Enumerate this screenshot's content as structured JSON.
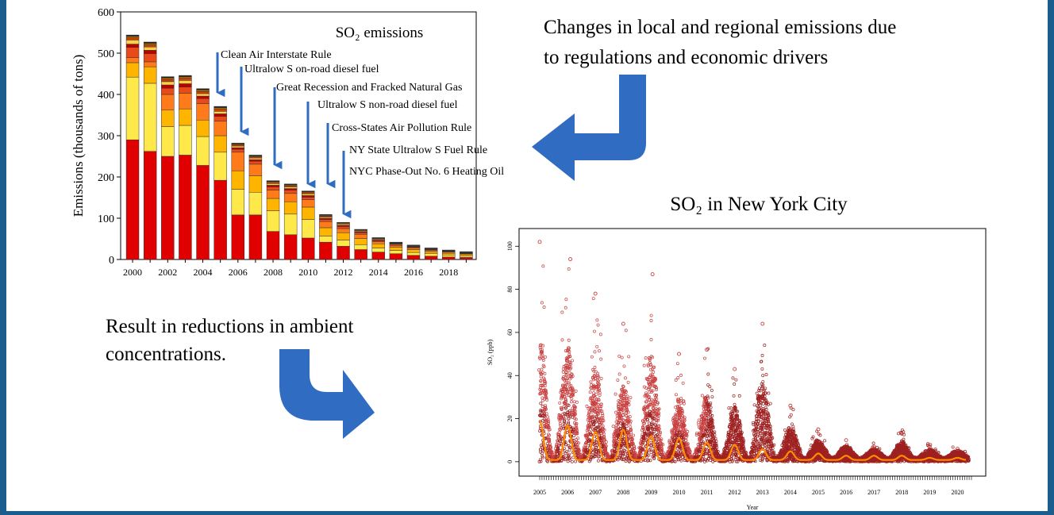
{
  "colors": {
    "frame": "#1b5e8e",
    "arrow": "#2f6cc2",
    "series_palette": [
      "#e00000",
      "#ffe84a",
      "#ffb400",
      "#ff7a1a",
      "#e84a1a",
      "#c00000",
      "#ffd040",
      "#d04000",
      "#b86400",
      "#202020"
    ],
    "nyc_points": "#c94040",
    "nyc_dense": "#9e2020",
    "nyc_mean": "#ff8c00"
  },
  "captions": {
    "top_right": [
      "Changes in local and regional emissions due",
      "to regulations and economic drivers"
    ],
    "bottom_left": [
      "Result in reductions in ambient",
      "concentrations."
    ]
  },
  "icons": [
    "curved-arrow-icon",
    "regulation-arrow-icon"
  ],
  "chart_data": [
    {
      "type": "bar",
      "stacked": true,
      "title": "SO₂ emissions",
      "ylabel": "Emissions (thousands of tons)",
      "xlabel": "",
      "ylim": [
        0,
        600
      ],
      "yticks": [
        0,
        100,
        200,
        300,
        400,
        500,
        600
      ],
      "xtick_labels": [
        "2000",
        "2002",
        "2004",
        "2006",
        "2008",
        "2010",
        "2012",
        "2014",
        "2016",
        "2018"
      ],
      "categories": [
        "2000",
        "2001",
        "2002",
        "2003",
        "2004",
        "2005",
        "2006",
        "2007",
        "2008",
        "2009",
        "2010",
        "2011",
        "2012",
        "2013",
        "2014",
        "2015",
        "2016",
        "2017",
        "2018",
        "2019"
      ],
      "series": [
        {
          "values": [
            290,
            262,
            250,
            253,
            228,
            192,
            108,
            108,
            68,
            60,
            52,
            42,
            32,
            24,
            18,
            14,
            10,
            8,
            6,
            5
          ]
        },
        {
          "values": [
            152,
            165,
            72,
            72,
            70,
            68,
            62,
            55,
            50,
            50,
            45,
            15,
            15,
            12,
            10,
            8,
            7,
            6,
            5,
            4
          ]
        },
        {
          "values": [
            35,
            40,
            40,
            40,
            40,
            40,
            45,
            40,
            30,
            30,
            30,
            20,
            18,
            15,
            10,
            8,
            7,
            5,
            4,
            3
          ]
        },
        {
          "values": [
            12,
            12,
            38,
            38,
            40,
            35,
            45,
            28,
            20,
            20,
            18,
            15,
            10,
            10,
            5,
            4,
            4,
            3,
            3,
            2
          ]
        },
        {
          "values": [
            25,
            20,
            15,
            15,
            12,
            12,
            7,
            7,
            8,
            8,
            6,
            5,
            5,
            4,
            3,
            3,
            2,
            2,
            1,
            1
          ]
        },
        {
          "values": [
            8,
            8,
            8,
            8,
            6,
            6,
            4,
            4,
            4,
            4,
            4,
            3,
            3,
            2,
            2,
            1,
            1,
            1,
            1,
            1
          ]
        },
        {
          "values": [
            10,
            8,
            8,
            8,
            6,
            6,
            4,
            4,
            4,
            4,
            4,
            3,
            3,
            2,
            2,
            1,
            1,
            1,
            1,
            1
          ]
        },
        {
          "values": [
            5,
            5,
            5,
            5,
            5,
            5,
            3,
            3,
            3,
            3,
            3,
            2,
            2,
            2,
            1,
            1,
            1,
            1,
            1,
            1
          ]
        },
        {
          "values": [
            4,
            4,
            4,
            4,
            4,
            4,
            2,
            2,
            2,
            2,
            2,
            2,
            1,
            1,
            1,
            1,
            1,
            0,
            0,
            0
          ]
        },
        {
          "values": [
            3,
            3,
            3,
            3,
            3,
            3,
            2,
            2,
            2,
            2,
            2,
            2,
            1,
            1,
            1,
            1,
            1,
            1,
            1,
            1
          ]
        }
      ],
      "annotations": [
        {
          "label": "Clean Air Interstate Rule",
          "year": 2005
        },
        {
          "label": "Ultralow S on-road diesel fuel",
          "year": 2006
        },
        {
          "label": "Great Recession and Fracked Natural Gas",
          "year": 2008
        },
        {
          "label": "Ultralow S non-road diesel fuel",
          "year": 2010
        },
        {
          "label": "Cross-States Air Pollution Rule",
          "year": 2011
        },
        {
          "label": "NY State Ultralow S Fuel Rule",
          "year": 2012
        },
        {
          "label": "NYC Phase-Out No. 6 Heating Oil",
          "year": null
        }
      ],
      "grid": false
    },
    {
      "type": "scatter",
      "title": "SO₂ in New York City",
      "ylabel": "SO₂ (ppb)",
      "xlabel": "Year",
      "xlim": [
        2005,
        2020.5
      ],
      "ylim": [
        -3,
        106
      ],
      "yticks": [
        0,
        20,
        40,
        60,
        80,
        100
      ],
      "xtick_labels": [
        "2005",
        "2006",
        "2007",
        "2008",
        "2009",
        "2010",
        "2011",
        "2012",
        "2013",
        "2014",
        "2015",
        "2016",
        "2017",
        "2018",
        "2019",
        "2020"
      ],
      "description_series": [
        {
          "kind": "points",
          "seasonal_peaks": [
            {
              "year": 2005.0,
              "max": 102
            },
            {
              "year": 2006.1,
              "max": 94
            },
            {
              "year": 2007.0,
              "max": 78
            },
            {
              "year": 2008.0,
              "max": 64
            },
            {
              "year": 2009.05,
              "max": 87
            },
            {
              "year": 2010.0,
              "max": 50
            },
            {
              "year": 2011.0,
              "max": 52
            },
            {
              "year": 2012.0,
              "max": 43
            },
            {
              "year": 2013.0,
              "max": 64
            },
            {
              "year": 2014.0,
              "max": 26
            },
            {
              "year": 2015.0,
              "max": 15
            },
            {
              "year": 2016.0,
              "max": 10
            },
            {
              "year": 2017.0,
              "max": 7
            },
            {
              "year": 2018.0,
              "max": 13
            },
            {
              "year": 2019.0,
              "max": 7
            },
            {
              "year": 2020.0,
              "max": 6
            }
          ]
        },
        {
          "kind": "mean_line",
          "winter_peaks": [
            18,
            16,
            13,
            14,
            11,
            10,
            8,
            7,
            5,
            4,
            3,
            2,
            2,
            2,
            1,
            1
          ]
        }
      ],
      "grid": false
    }
  ]
}
